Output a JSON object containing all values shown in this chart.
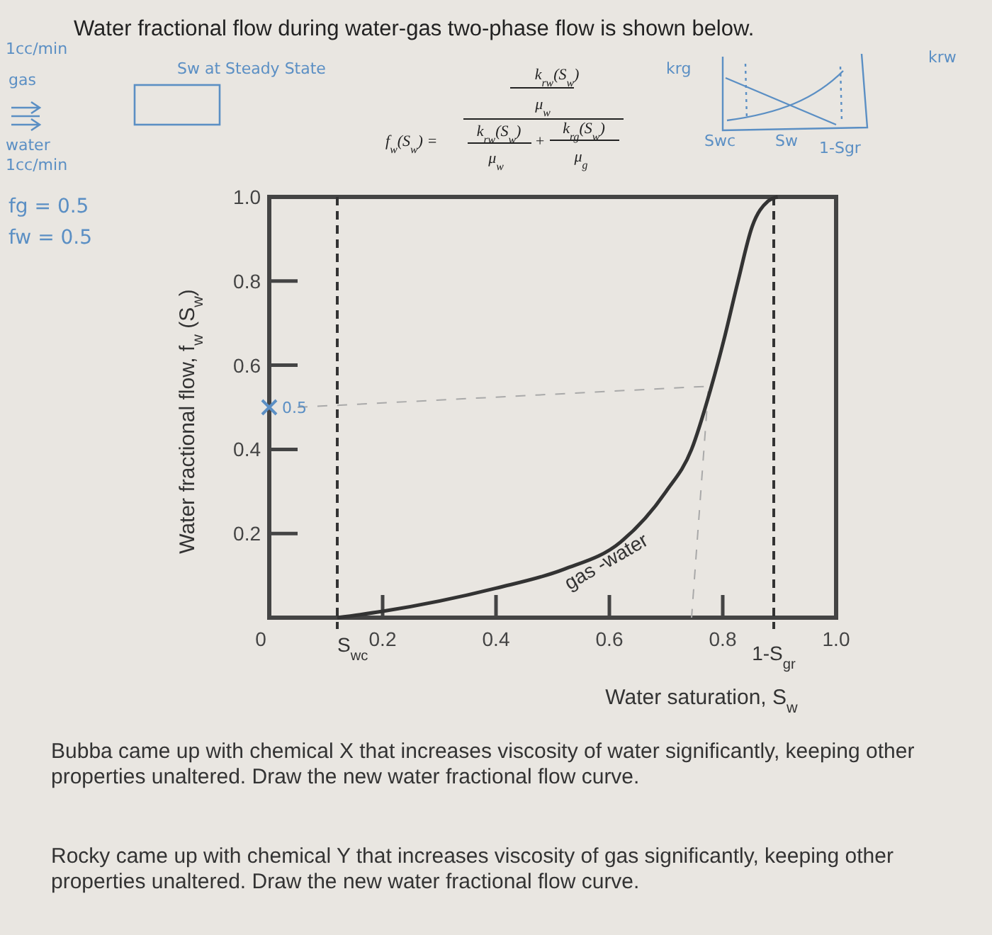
{
  "chart_data": {
    "type": "line",
    "title": "Water fractional flow during water-gas two-phase flow is shown below.",
    "xlabel": "Water saturation, S$_{w}$",
    "ylabel": "Water fractional flow, f$_{w}$ (S$_{w}$)",
    "xlim": [
      0,
      1
    ],
    "ylim": [
      0,
      1
    ],
    "xticks": [
      0,
      0.2,
      0.4,
      0.6,
      0.8,
      {
        "value": 1,
        "label": "1.0"
      }
    ],
    "yticks": [
      0.2,
      0.4,
      0.6,
      0.8,
      {
        "value": 1,
        "label": "1.0"
      }
    ],
    "grid": false,
    "marker": "none",
    "line_style": "solid",
    "series": [
      {
        "name": "gas -water",
        "color": "#333333",
        "x": [
          0.12,
          0.2,
          0.4,
          0.52,
          0.62,
          0.7,
          0.745,
          0.778,
          0.802,
          0.827,
          0.852,
          0.88,
          0.897
        ],
        "values": [
          0,
          0.015,
          0.07,
          0.115,
          0.18,
          0.3,
          0.4,
          0.54,
          0.66,
          0.8,
          0.93,
          0.99,
          1
        ]
      }
    ],
    "ref_lines": [
      {
        "axis": "x",
        "value": 0.12,
        "label": "S$_{wc}$",
        "line_style": "dashed",
        "color": "#333333"
      },
      {
        "axis": "x",
        "value": 0.89,
        "label": "1-S$_{gr}$",
        "line_style": "dashed",
        "color": "#333333"
      }
    ],
    "annotations": [
      "f$_{w}$(S$_{w}$) =",
      "k$_{rw}$(S$_{w}$)",
      "μ$_{w}$",
      "k$_{rw}$(S$_{w}$)",
      "μ$_{w}$",
      "+",
      "k$_{rg}$(S$_{w}$)",
      "μ$_{g}$",
      "1cc/min",
      "gas",
      "water",
      "1cc/min",
      "fg = 0.5",
      "fw = 0.5",
      "Sw at Steady State",
      "krg",
      "krw",
      "Swc",
      "Sw",
      "1-Sgr",
      {
        "text": "0.5",
        "x": 0,
        "y": 0.5
      },
      "Bubba came up with chemical X that increases viscosity of water significantly, keeping other properties unaltered. Draw the new water fractional flow curve.",
      "Rocky came up with chemical Y that increases viscosity of gas significantly, keeping other properties unaltered. Draw the new water fractional flow curve."
    ]
  }
}
